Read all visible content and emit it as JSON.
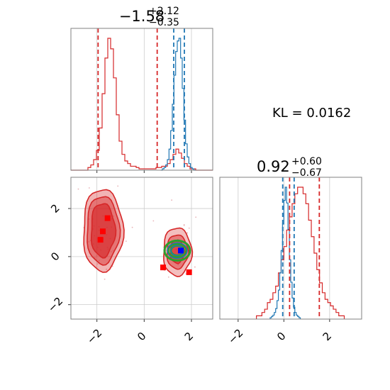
{
  "chart_data": {
    "type": "corner",
    "annotation": "KL = 0.0162",
    "parameters": [
      {
        "title_main": "−1.58",
        "title_plus": "+2.12",
        "title_minus": "−0.35",
        "xlim": [
          -3.1,
          2.9
        ],
        "xticks": [
          -2,
          0,
          2
        ],
        "xtick_labels": [
          "−2",
          "0",
          "2"
        ]
      },
      {
        "title_main": "0.92",
        "title_plus": "+0.60",
        "title_minus": "−0.67",
        "xlim": [
          -2.8,
          3.4
        ],
        "xticks": [
          -2,
          0,
          2
        ],
        "xtick_labels": [
          "−2",
          "0",
          "2"
        ]
      }
    ],
    "joint_ylim": [
      -2.6,
      3.3
    ],
    "joint_yticks": [
      -2,
      0,
      2
    ],
    "joint_ytick_labels": [
      "−2",
      "0",
      "2"
    ],
    "marginal_1": {
      "red_quantile_lines": [
        -1.95,
        0.55
      ],
      "blue_quantile_lines": [
        1.25,
        1.7
      ],
      "red_hist": {
        "edges_start": -3.1,
        "bin_width": 0.12,
        "values": [
          0,
          0,
          0,
          0,
          0,
          0,
          0.02,
          0.04,
          0.08,
          0.15,
          0.32,
          0.58,
          0.85,
          1.0,
          0.92,
          0.7,
          0.42,
          0.22,
          0.12,
          0.07,
          0.05,
          0.03,
          0.03,
          0.02,
          0.01,
          0.01,
          0.01,
          0.01,
          0.01,
          0.01,
          0.02,
          0.02,
          0.03,
          0.03,
          0.05,
          0.08,
          0.12,
          0.16,
          0.13,
          0.09,
          0.05,
          0.03,
          0.01,
          0.01,
          0,
          0,
          0,
          0,
          0,
          0
        ]
      },
      "blue_hist": {
        "edges_start": 0.7,
        "bin_width": 0.07,
        "values": [
          0,
          0.01,
          0.02,
          0.04,
          0.08,
          0.16,
          0.3,
          0.5,
          0.72,
          0.9,
          0.98,
          1.0,
          0.85,
          0.62,
          0.38,
          0.2,
          0.1,
          0.05,
          0.02,
          0.01,
          0
        ]
      }
    },
    "marginal_2": {
      "red_quantile_lines": [
        0.25,
        1.55
      ],
      "blue_quantile_lines": [
        -0.05,
        0.45
      ],
      "red_hist": {
        "edges_start": -1.2,
        "bin_width": 0.12,
        "values": [
          0.01,
          0.01,
          0.02,
          0.03,
          0.05,
          0.06,
          0.08,
          0.1,
          0.14,
          0.18,
          0.22,
          0.27,
          0.31,
          0.35,
          0.38,
          0.4,
          0.4,
          0.38,
          0.35,
          0.3,
          0.25,
          0.2,
          0.15,
          0.11,
          0.08,
          0.06,
          0.05,
          0.04,
          0.03,
          0.02,
          0.01,
          0.01
        ]
      },
      "blue_hist": {
        "edges_start": -0.6,
        "bin_width": 0.06,
        "values": [
          0.01,
          0.02,
          0.03,
          0.05,
          0.08,
          0.14,
          0.22,
          0.35,
          0.52,
          0.72,
          0.9,
          1.0,
          0.88,
          0.68,
          0.45,
          0.28,
          0.16,
          0.09,
          0.05,
          0.03,
          0.02,
          0.01
        ]
      }
    },
    "joint": {
      "red_markers": [
        [
          -1.55,
          1.6
        ],
        [
          -1.75,
          1.05
        ],
        [
          -1.85,
          0.7
        ],
        [
          0.8,
          -0.45
        ],
        [
          1.9,
          -0.65
        ]
      ],
      "blue_marker": [
        1.55,
        0.25
      ],
      "blue_green_center": [
        1.4,
        0.25
      ],
      "red_mode_left_center": [
        -1.75,
        1.1
      ],
      "red_mode_right_center": [
        1.4,
        0.2
      ]
    },
    "colors": {
      "red": "#d62728",
      "blue": "#1f77b4",
      "green": "#2ca02c",
      "marker_red": "#ff0000",
      "marker_blue": "#0000ff",
      "grid": "#cccccc"
    }
  }
}
